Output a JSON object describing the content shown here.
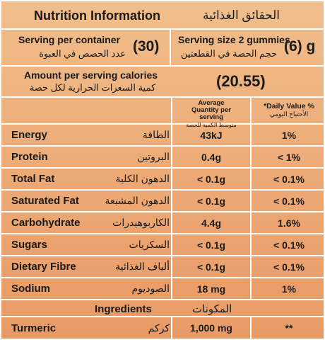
{
  "header": {
    "title_en": "Nutrition Information",
    "title_ar": "الحقائق الغذائية"
  },
  "serving": {
    "per_container_en": "Serving per container",
    "per_container_ar": "عدد الحصص في العبوة",
    "per_container_value": "(30)",
    "size_en": "Serving size 2 gummies",
    "size_ar": "حجم الحصة في القطعتين",
    "size_value": "(6) g"
  },
  "calories": {
    "label_en": "Amount per serving calories",
    "label_ar": "كمية السعرات الحرارية لكل حصة",
    "value": "(20.55)"
  },
  "columns": {
    "avg_qty_en": "Average Quantity per serving",
    "avg_qty_ar": "متوسط الكمية للحصة",
    "dv_en": "*Daily Value %",
    "dv_ar": "الأحتياج اليومي"
  },
  "nutrients": [
    {
      "name": "Energy",
      "name_ar": "الطاقة",
      "qty": "43kJ",
      "dv": "1%"
    },
    {
      "name": "Protein",
      "name_ar": "البروتين",
      "qty": "0.4g",
      "dv": "< 1%"
    },
    {
      "name": "Total Fat",
      "name_ar": "الدهون الكلية",
      "qty": "< 0.1g",
      "dv": "< 0.1%"
    },
    {
      "name": "Saturated Fat",
      "name_ar": "الدهون المشبعة",
      "qty": "< 0.1g",
      "dv": "< 0.1%"
    },
    {
      "name": "Carbohydrate",
      "name_ar": "الكاربوهيدرات",
      "qty": "4.4g",
      "dv": "1.6%"
    },
    {
      "name": "Sugars",
      "name_ar": "السكريات",
      "qty": "< 0.1g",
      "dv": "< 0.1%"
    },
    {
      "name": "Dietary Fibre",
      "name_ar": "ألياف الغذائية",
      "qty": "< 0.1g",
      "dv": "< 0.1%"
    },
    {
      "name": "Sodium",
      "name_ar": "الصوديوم",
      "qty": "18 mg",
      "dv": "1%"
    }
  ],
  "ingredients": {
    "label_en": "Ingredients",
    "label_ar": "المكونات",
    "items": [
      {
        "name": "Turmeric",
        "name_ar": "كركم",
        "qty": "1,000 mg",
        "dv": "**"
      }
    ]
  }
}
